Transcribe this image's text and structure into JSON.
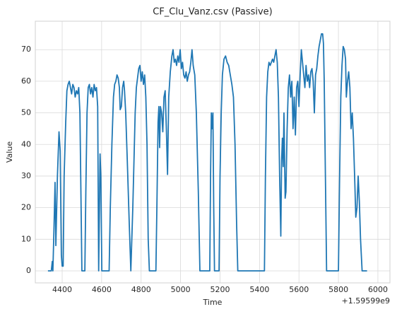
{
  "chart_data": {
    "type": "line",
    "title": "CF_Clu_Vanz.csv (Passive)",
    "xlabel": "Time",
    "ylabel": "Value",
    "x_offset_label": "+1.59599e9",
    "color": "#1f77b4",
    "grid": true,
    "xlim": [
      4264,
      6061
    ],
    "ylim": [
      -3.8,
      79
    ],
    "xticks": [
      4400,
      4600,
      4800,
      5000,
      5200,
      5400,
      5600,
      5800,
      6000
    ],
    "yticks": [
      0,
      10,
      20,
      30,
      40,
      50,
      60,
      70
    ],
    "x": [
      4328,
      4345,
      4350,
      4353,
      4358,
      4364,
      4368,
      4376,
      4384,
      4390,
      4396,
      4400,
      4405,
      4410,
      4418,
      4424,
      4430,
      4436,
      4442,
      4448,
      4454,
      4460,
      4466,
      4472,
      4478,
      4484,
      4490,
      4496,
      4500,
      4515,
      4520,
      4526,
      4532,
      4538,
      4544,
      4550,
      4556,
      4562,
      4568,
      4574,
      4580,
      4585,
      4592,
      4596,
      4601,
      4638,
      4644,
      4652,
      4660,
      4666,
      4672,
      4678,
      4684,
      4690,
      4694,
      4700,
      4706,
      4712,
      4716,
      4722,
      4730,
      4740,
      4748,
      4758,
      4764,
      4770,
      4776,
      4782,
      4788,
      4794,
      4800,
      4806,
      4812,
      4818,
      4824,
      4830,
      4836,
      4842,
      4875,
      4880,
      4886,
      4890,
      4894,
      4898,
      4904,
      4910,
      4916,
      4922,
      4928,
      4934,
      4940,
      4948,
      4956,
      4962,
      4968,
      4974,
      4980,
      4986,
      4992,
      4998,
      5004,
      5010,
      5016,
      5022,
      5028,
      5034,
      5040,
      5046,
      5052,
      5058,
      5064,
      5072,
      5080,
      5090,
      5098,
      5148,
      5152,
      5156,
      5160,
      5164,
      5168,
      5172,
      5195,
      5200,
      5206,
      5212,
      5220,
      5228,
      5236,
      5244,
      5252,
      5260,
      5268,
      5276,
      5284,
      5290,
      5425,
      5430,
      5436,
      5442,
      5448,
      5454,
      5460,
      5466,
      5472,
      5478,
      5484,
      5490,
      5496,
      5502,
      5508,
      5512,
      5516,
      5520,
      5524,
      5530,
      5534,
      5540,
      5546,
      5552,
      5558,
      5564,
      5570,
      5576,
      5582,
      5588,
      5594,
      5600,
      5606,
      5612,
      5618,
      5624,
      5630,
      5636,
      5642,
      5648,
      5654,
      5660,
      5666,
      5672,
      5678,
      5684,
      5690,
      5696,
      5702,
      5708,
      5714,
      5720,
      5724,
      5728,
      5734,
      5740,
      5800,
      5806,
      5812,
      5818,
      5824,
      5830,
      5836,
      5840,
      5846,
      5852,
      5858,
      5864,
      5870,
      5876,
      5882,
      5888,
      5894,
      5900,
      5906,
      5912,
      5916,
      5920,
      5945
    ],
    "values": [
      0,
      0,
      3,
      0,
      12,
      28,
      8,
      30,
      44,
      38,
      5,
      1.5,
      1.5,
      30,
      47,
      57,
      59,
      60,
      58,
      56,
      59,
      58,
      55,
      57,
      56,
      58,
      50,
      20,
      0,
      0,
      25,
      50,
      58,
      59,
      56,
      58,
      55,
      59,
      57,
      58,
      52,
      0,
      37,
      30,
      0,
      0,
      20,
      40,
      55,
      59,
      60,
      62,
      61,
      58,
      51,
      52,
      58,
      60,
      57,
      50,
      35,
      15,
      0,
      20,
      35,
      50,
      58,
      61,
      64,
      65,
      60,
      63,
      59,
      62,
      55,
      40,
      10,
      0,
      0,
      20,
      47,
      52,
      39,
      52,
      50,
      44,
      55,
      57,
      45,
      30.5,
      55,
      63,
      68,
      70,
      66,
      67,
      65,
      68,
      66,
      70,
      64,
      66,
      62,
      61,
      63,
      60,
      62,
      63,
      66,
      70,
      65,
      62,
      50,
      25,
      0,
      0,
      30,
      50,
      45,
      50,
      20,
      0,
      0,
      30,
      50,
      62,
      67,
      68,
      66,
      65,
      62,
      59,
      55,
      40,
      15,
      0,
      0,
      30,
      55,
      63,
      66,
      65,
      66,
      67,
      66,
      68,
      70,
      66,
      55,
      30,
      11,
      35,
      42,
      33,
      50,
      23,
      25,
      45,
      58,
      62,
      55,
      60,
      45,
      55,
      43,
      58,
      60,
      52,
      62,
      70,
      66,
      62,
      58,
      65,
      60,
      62,
      58,
      63,
      64,
      60,
      50,
      62,
      64,
      68,
      71,
      73,
      75,
      75,
      72,
      60,
      30,
      0,
      0,
      30,
      55,
      65,
      71,
      70,
      67,
      55,
      60,
      63,
      58,
      45,
      50,
      42,
      30,
      17,
      20,
      30,
      22,
      10,
      5,
      0,
      0
    ]
  }
}
